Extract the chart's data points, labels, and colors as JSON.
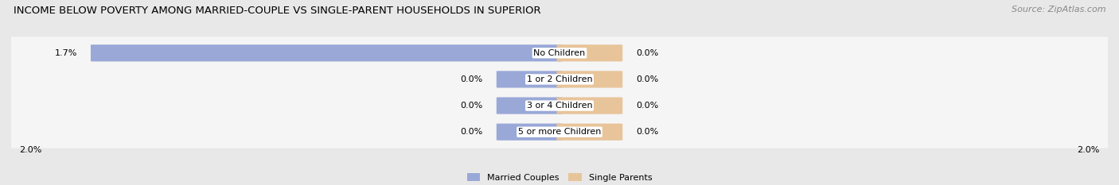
{
  "title": "INCOME BELOW POVERTY AMONG MARRIED-COUPLE VS SINGLE-PARENT HOUSEHOLDS IN SUPERIOR",
  "source": "Source: ZipAtlas.com",
  "categories": [
    "No Children",
    "1 or 2 Children",
    "3 or 4 Children",
    "5 or more Children"
  ],
  "married_values": [
    1.7,
    0.0,
    0.0,
    0.0
  ],
  "single_values": [
    0.0,
    0.0,
    0.0,
    0.0
  ],
  "married_color": "#9aa8d8",
  "single_color": "#e8c49a",
  "xlim_max": 2.0,
  "background_color": "#e8e8e8",
  "bar_bg_color": "#f5f5f5",
  "title_fontsize": 9.5,
  "label_fontsize": 8,
  "source_fontsize": 8,
  "axis_label_fontsize": 8,
  "legend_label": [
    "Married Couples",
    "Single Parents"
  ],
  "zero_bar_width": 0.22,
  "bar_height": 0.62
}
